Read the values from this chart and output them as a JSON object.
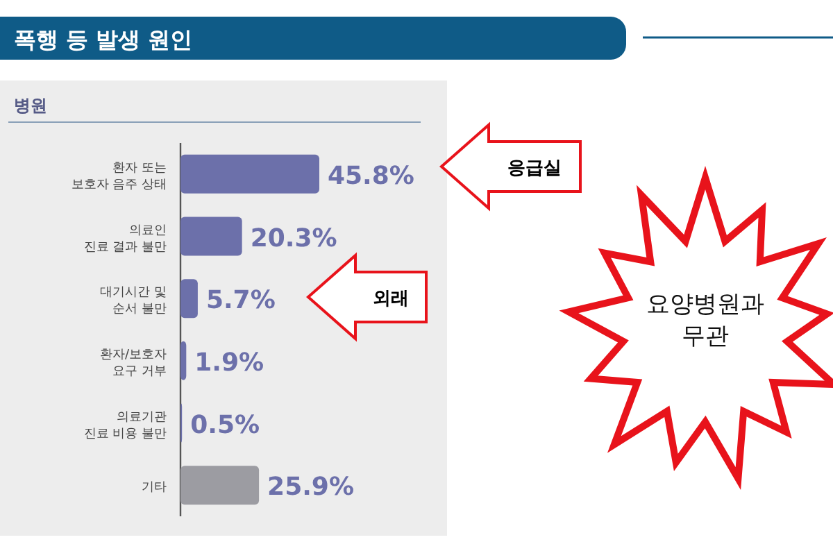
{
  "chart_data": {
    "type": "bar",
    "orientation": "horizontal",
    "title": "폭행 등 발생 원인",
    "subtitle": "병원",
    "categories": [
      "환자 또는\n보호자 음주 상태",
      "의료인\n진료 결과 불만",
      "대기시간 및\n순서 불만",
      "환자/보호자\n요구 거부",
      "의료기관\n진료 비용 불만",
      "기타"
    ],
    "values": [
      45.8,
      20.3,
      5.7,
      1.9,
      0.5,
      25.9
    ],
    "colors": [
      "#6c70aa",
      "#6c70aa",
      "#6c70aa",
      "#6c70aa",
      "#6c70aa",
      "#9c9ca2"
    ],
    "value_labels": [
      "45.8%",
      "20.3%",
      "5.7%",
      "1.9%",
      "0.5%",
      "25.9%"
    ],
    "annotations": [
      "응급실",
      "외래",
      "요양병원과\n무관"
    ]
  }
}
